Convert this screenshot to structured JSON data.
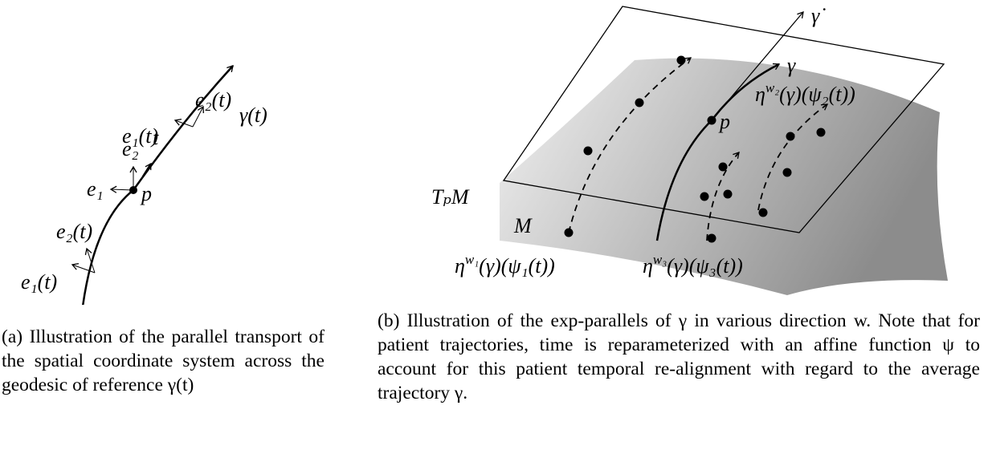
{
  "panel_a": {
    "labels": [
      "e₁(t)",
      "e₂(t)",
      "e₁",
      "e₂",
      "t",
      "p",
      "e₁(t)",
      "e₂(t)",
      "γ(t)"
    ],
    "caption": "(a) Illustration of the parallel transport of the spatial coordinate system across the geodesic of reference γ(t)"
  },
  "panel_b": {
    "labels": [
      "γ̇",
      "γ",
      "p",
      "TₚM",
      "M"
    ],
    "eta_labels": [
      [
        "η",
        "w₂",
        "(γ)(ψ₂(t))"
      ],
      [
        "η",
        "w₁",
        "(γ)(ψ₁(t))"
      ],
      [
        "η",
        "w₃",
        "(γ)(ψ₃(t))"
      ]
    ],
    "caption": "(b) Illustration of the exp-parallels of γ in various direction w. Note that for patient trajectories, time is reparameterized with an affine function ψ to account for this patient temporal re-alignment with regard to the average trajectory γ."
  }
}
